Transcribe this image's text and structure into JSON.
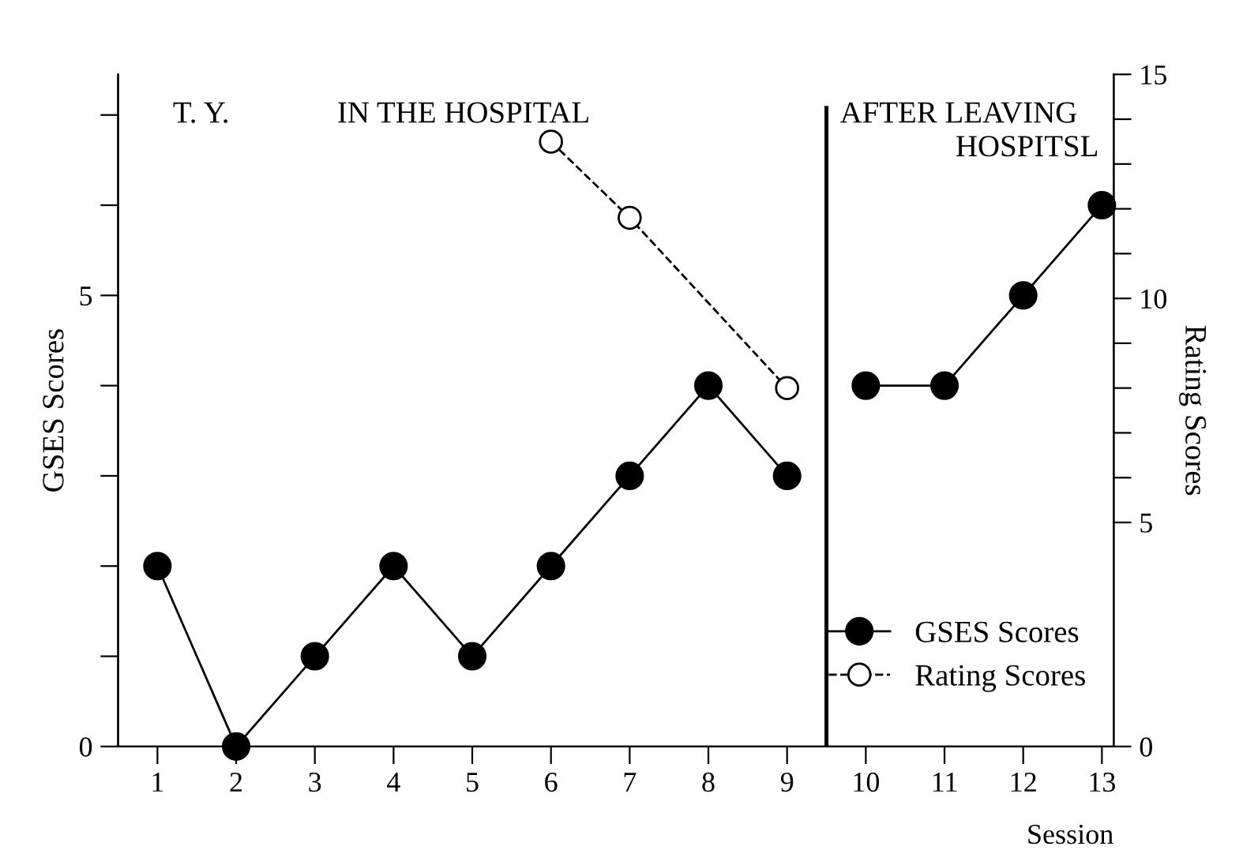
{
  "chart_data": {
    "type": "line",
    "xlabel": "Session",
    "ylabel": "GSES Scores",
    "y2label": "Rating Scores",
    "annotations": [
      "T. Y.",
      "IN THE HOSPITAL",
      "AFTER LEAVING",
      "HOSPITSL"
    ],
    "series": [
      {
        "name": "GSES Scores",
        "color": "#000000",
        "marker": "circle",
        "line_style": "solid",
        "x": [
          1,
          2,
          3,
          4,
          5,
          6,
          7,
          8,
          9,
          null,
          10,
          11,
          12,
          13
        ],
        "values": [
          2,
          0,
          1,
          2,
          1,
          2,
          3,
          4,
          3,
          null,
          4,
          4,
          5,
          6
        ]
      },
      {
        "name": "Rating Scores",
        "color": "#000000",
        "marker": "circle",
        "line_style": "dashed",
        "axis": "y2",
        "x": [
          6,
          7,
          9
        ],
        "values": [
          13.5,
          11.8,
          8
        ]
      }
    ],
    "xlim": [
      0.5,
      13.15
    ],
    "xticks": [
      1,
      2,
      3,
      4,
      5,
      6,
      7,
      8,
      9,
      10,
      11,
      12,
      13
    ],
    "ylim": [
      0,
      7.45
    ],
    "yticks": [
      0,
      {
        "value": 1,
        "label": null
      },
      {
        "value": 2,
        "label": null
      },
      {
        "value": 3,
        "label": null
      },
      {
        "value": 4,
        "label": null
      },
      5,
      {
        "value": 6,
        "label": null
      },
      {
        "value": 7,
        "label": null
      }
    ],
    "y2lim": [
      0,
      15
    ],
    "y2ticks": [
      0,
      5,
      {
        "value": 6,
        "label": null
      },
      {
        "value": 7,
        "label": null
      },
      {
        "value": 8,
        "label": null
      },
      {
        "value": 9,
        "label": null
      },
      10,
      {
        "value": 11,
        "label": null
      },
      {
        "value": 12,
        "label": null
      },
      {
        "value": 13,
        "label": null
      },
      {
        "value": 14,
        "label": null
      },
      15
    ],
    "ref_lines": [
      {
        "axis": "x",
        "value": 9.5,
        "color": "#000000",
        "line_style": "solid"
      }
    ],
    "legend": "bottom right",
    "grid": false
  }
}
